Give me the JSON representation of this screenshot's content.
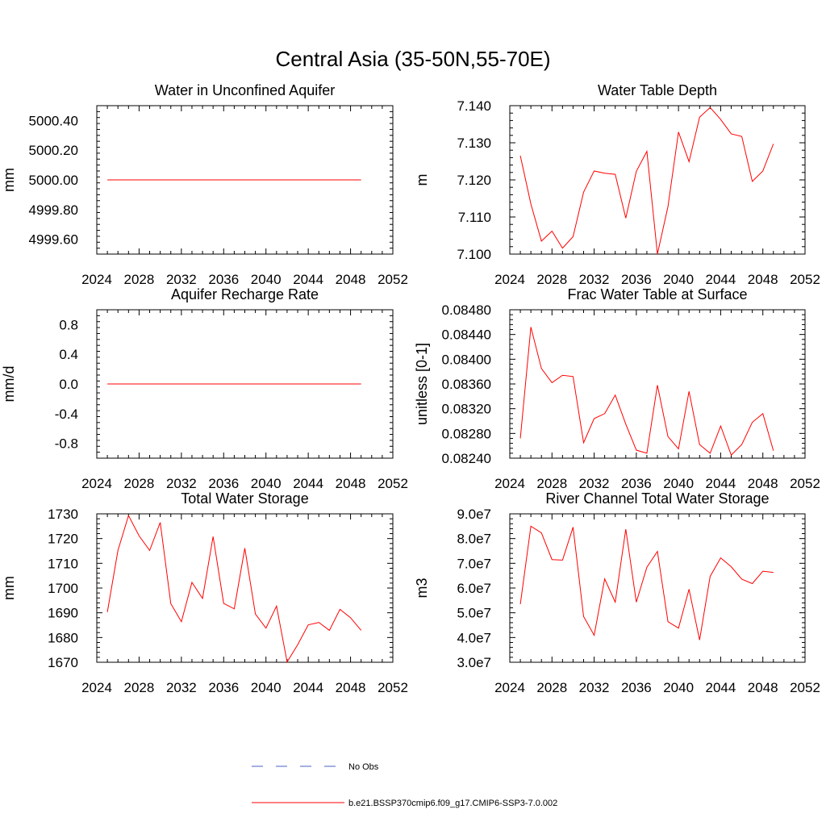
{
  "title": "Central Asia (35-50N,55-70E)",
  "legend": {
    "obs_label": "No Obs",
    "model_label": "b.e21.BSSP370cmip6.f09_g17.CMIP6-SSP3-7.0.002",
    "obs_color": "#4b5fc4",
    "model_color": "#ff0000"
  },
  "chart_data": [
    {
      "type": "line",
      "title": "Water in Unconfined Aquifer",
      "ylabel": "mm",
      "xlim": [
        2024,
        2052
      ],
      "ylim": [
        4999.5,
        5000.5
      ],
      "xticks": [
        "2024",
        "2028",
        "2032",
        "2036",
        "2040",
        "2044",
        "2048",
        "2052"
      ],
      "yticks": [
        "4999.60",
        "4999.80",
        "5000.00",
        "5000.20",
        "5000.40"
      ],
      "ytick_values": [
        4999.6,
        4999.8,
        5000.0,
        5000.2,
        5000.4
      ],
      "series": [
        {
          "x": [
            2025,
            2026,
            2027,
            2028,
            2029,
            2030,
            2031,
            2032,
            2033,
            2034,
            2035,
            2036,
            2037,
            2038,
            2039,
            2040,
            2041,
            2042,
            2043,
            2044,
            2045,
            2046,
            2047,
            2048,
            2049
          ],
          "y": [
            5000,
            5000,
            5000,
            5000,
            5000,
            5000,
            5000,
            5000,
            5000,
            5000,
            5000,
            5000,
            5000,
            5000,
            5000,
            5000,
            5000,
            5000,
            5000,
            5000,
            5000,
            5000,
            5000,
            5000,
            5000
          ],
          "color": "#ff0000"
        }
      ]
    },
    {
      "type": "line",
      "title": "Water Table Depth",
      "ylabel": "m",
      "xlim": [
        2024,
        2052
      ],
      "ylim": [
        7.1,
        7.14
      ],
      "xticks": [
        "2024",
        "2028",
        "2032",
        "2036",
        "2040",
        "2044",
        "2048",
        "2052"
      ],
      "yticks": [
        "7.100",
        "7.110",
        "7.120",
        "7.130",
        "7.140"
      ],
      "ytick_values": [
        7.1,
        7.11,
        7.12,
        7.13,
        7.14
      ],
      "series": [
        {
          "x": [
            2025,
            2026,
            2027,
            2028,
            2029,
            2030,
            2031,
            2032,
            2033,
            2034,
            2035,
            2036,
            2037,
            2038,
            2039,
            2040,
            2041,
            2042,
            2043,
            2044,
            2045,
            2046,
            2047,
            2048,
            2049
          ],
          "y": [
            7.1265,
            7.1135,
            7.1035,
            7.1062,
            7.1016,
            7.1047,
            7.1167,
            7.1224,
            7.1218,
            7.1215,
            7.1097,
            7.1223,
            7.1277,
            7.1,
            7.1128,
            7.1329,
            7.1249,
            7.1369,
            7.1395,
            7.1363,
            7.1324,
            7.1317,
            7.1196,
            7.1224,
            7.1297
          ],
          "color": "#ff0000"
        }
      ]
    },
    {
      "type": "line",
      "title": "Aquifer Recharge Rate",
      "ylabel": "mm/d",
      "xlim": [
        2024,
        2052
      ],
      "ylim": [
        -1.0,
        1.0
      ],
      "xticks": [
        "2024",
        "2028",
        "2032",
        "2036",
        "2040",
        "2044",
        "2048",
        "2052"
      ],
      "yticks": [
        "-0.8",
        "-0.4",
        "0.0",
        "0.4",
        "0.8"
      ],
      "ytick_values": [
        -0.8,
        -0.4,
        0.0,
        0.4,
        0.8
      ],
      "series": [
        {
          "x": [
            2025,
            2026,
            2027,
            2028,
            2029,
            2030,
            2031,
            2032,
            2033,
            2034,
            2035,
            2036,
            2037,
            2038,
            2039,
            2040,
            2041,
            2042,
            2043,
            2044,
            2045,
            2046,
            2047,
            2048,
            2049
          ],
          "y": [
            0,
            0,
            0,
            0,
            0,
            0,
            0,
            0,
            0,
            0,
            0,
            0,
            0,
            0,
            0,
            0,
            0,
            0,
            0,
            0,
            0,
            0,
            0,
            0,
            0
          ],
          "color": "#ff0000"
        }
      ]
    },
    {
      "type": "line",
      "title": "Frac Water Table at Surface",
      "ylabel": "unitless [0-1]",
      "xlim": [
        2024,
        2052
      ],
      "ylim": [
        0.0824,
        0.0848
      ],
      "xticks": [
        "2024",
        "2028",
        "2032",
        "2036",
        "2040",
        "2044",
        "2048",
        "2052"
      ],
      "yticks": [
        "0.08240",
        "0.08280",
        "0.08320",
        "0.08360",
        "0.08400",
        "0.08440",
        "0.08480"
      ],
      "ytick_values": [
        0.0824,
        0.0828,
        0.0832,
        0.0836,
        0.084,
        0.0844,
        0.0848
      ],
      "series": [
        {
          "x": [
            2025,
            2026,
            2027,
            2028,
            2029,
            2030,
            2031,
            2032,
            2033,
            2034,
            2035,
            2036,
            2037,
            2038,
            2039,
            2040,
            2041,
            2042,
            2043,
            2044,
            2045,
            2046,
            2047,
            2048,
            2049
          ],
          "y": [
            0.08272,
            0.08452,
            0.08385,
            0.08362,
            0.08374,
            0.08372,
            0.08265,
            0.08304,
            0.08312,
            0.08342,
            0.08295,
            0.08253,
            0.08248,
            0.08358,
            0.08275,
            0.08255,
            0.08348,
            0.08262,
            0.08248,
            0.08292,
            0.08245,
            0.08262,
            0.08298,
            0.08312,
            0.08252
          ],
          "color": "#ff0000"
        }
      ]
    },
    {
      "type": "line",
      "title": "Total Water Storage",
      "ylabel": "mm",
      "xlim": [
        2024,
        2052
      ],
      "ylim": [
        1670,
        1730
      ],
      "xticks": [
        "2024",
        "2028",
        "2032",
        "2036",
        "2040",
        "2044",
        "2048",
        "2052"
      ],
      "yticks": [
        "1670",
        "1680",
        "1690",
        "1700",
        "1710",
        "1720",
        "1730"
      ],
      "ytick_values": [
        1670,
        1680,
        1690,
        1700,
        1710,
        1720,
        1730
      ],
      "series": [
        {
          "x": [
            2025,
            2026,
            2027,
            2028,
            2029,
            2030,
            2031,
            2032,
            2033,
            2034,
            2035,
            2036,
            2037,
            2038,
            2039,
            2040,
            2041,
            2042,
            2043,
            2044,
            2045,
            2046,
            2047,
            2048,
            2049
          ],
          "y": [
            1690.3,
            1715.2,
            1729.3,
            1721.1,
            1715.2,
            1726.5,
            1693.7,
            1686.4,
            1702.3,
            1695.8,
            1720.8,
            1693.8,
            1691.6,
            1716.1,
            1689.5,
            1683.8,
            1692.7,
            1670.1,
            1677.1,
            1685.1,
            1686.1,
            1682.9,
            1691.4,
            1688.0,
            1682.9
          ],
          "color": "#ff0000"
        }
      ]
    },
    {
      "type": "line",
      "title": "River Channel Total Water Storage",
      "ylabel": "m3",
      "xlim": [
        2024,
        2052
      ],
      "ylim": [
        30000000,
        90000000
      ],
      "xticks": [
        "2024",
        "2028",
        "2032",
        "2036",
        "2040",
        "2044",
        "2048",
        "2052"
      ],
      "yticks": [
        "3.0e7",
        "4.0e7",
        "5.0e7",
        "6.0e7",
        "7.0e7",
        "8.0e7",
        "9.0e7"
      ],
      "ytick_values": [
        30000000,
        40000000,
        50000000,
        60000000,
        70000000,
        80000000,
        90000000
      ],
      "series": [
        {
          "x": [
            2025,
            2026,
            2027,
            2028,
            2029,
            2030,
            2031,
            2032,
            2033,
            2034,
            2035,
            2036,
            2037,
            2038,
            2039,
            2040,
            2041,
            2042,
            2043,
            2044,
            2045,
            2046,
            2047,
            2048,
            2049
          ],
          "y": [
            53500000,
            85000000,
            82300000,
            71500000,
            71300000,
            84600000,
            48500000,
            40900000,
            63700000,
            54300000,
            83800000,
            54300000,
            68400000,
            74800000,
            46400000,
            43800000,
            59500000,
            39000000,
            64700000,
            72200000,
            68600000,
            63600000,
            61800000,
            66800000,
            66300000
          ],
          "color": "#ff0000"
        }
      ]
    }
  ]
}
